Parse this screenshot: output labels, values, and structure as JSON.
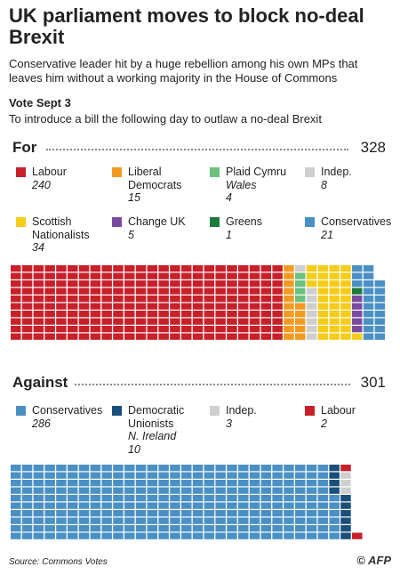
{
  "header": {
    "title": "UK parliament moves to block no-deal Brexit",
    "subtitle": "Conservative leader hit by a huge rebellion among his own MPs that leaves him without a working majority in the House of Commons",
    "vote": "Vote Sept 3",
    "description": "To introduce a bill the following day to outlaw a no-deal Brexit"
  },
  "chart_data": [
    {
      "type": "waffle",
      "title": "For",
      "total": 328,
      "series": [
        {
          "name": "Labour",
          "color": "#c8202a",
          "value": 240
        },
        {
          "name": "Liberal Democrats",
          "color": "#f39a20",
          "value": 15
        },
        {
          "name": "Plaid Cymru",
          "note": "Wales",
          "color": "#6cc17c",
          "value": 4
        },
        {
          "name": "Indep.",
          "color": "#cfcfcf",
          "value": 8
        },
        {
          "name": "Scottish Nationalists",
          "color": "#f5cc1a",
          "value": 34
        },
        {
          "name": "Change UK",
          "color": "#7a4aa0",
          "value": 5
        },
        {
          "name": "Greens",
          "color": "#1d7a3c",
          "value": 1
        },
        {
          "name": "Conservatives",
          "color": "#4a90c4",
          "value": 21
        }
      ]
    },
    {
      "type": "waffle",
      "title": "Against",
      "total": 301,
      "series": [
        {
          "name": "Conservatives",
          "color": "#4a90c4",
          "value": 286
        },
        {
          "name": "Democratic Unionists",
          "note": "N. Ireland",
          "color": "#1a4f7a",
          "value": 10
        },
        {
          "name": "Indep.",
          "color": "#cfcfcf",
          "value": 3
        },
        {
          "name": "Labour",
          "color": "#c8202a",
          "value": 2
        }
      ]
    }
  ],
  "footer": {
    "source": "Source: Commons Votes",
    "credit": "© AFP"
  }
}
